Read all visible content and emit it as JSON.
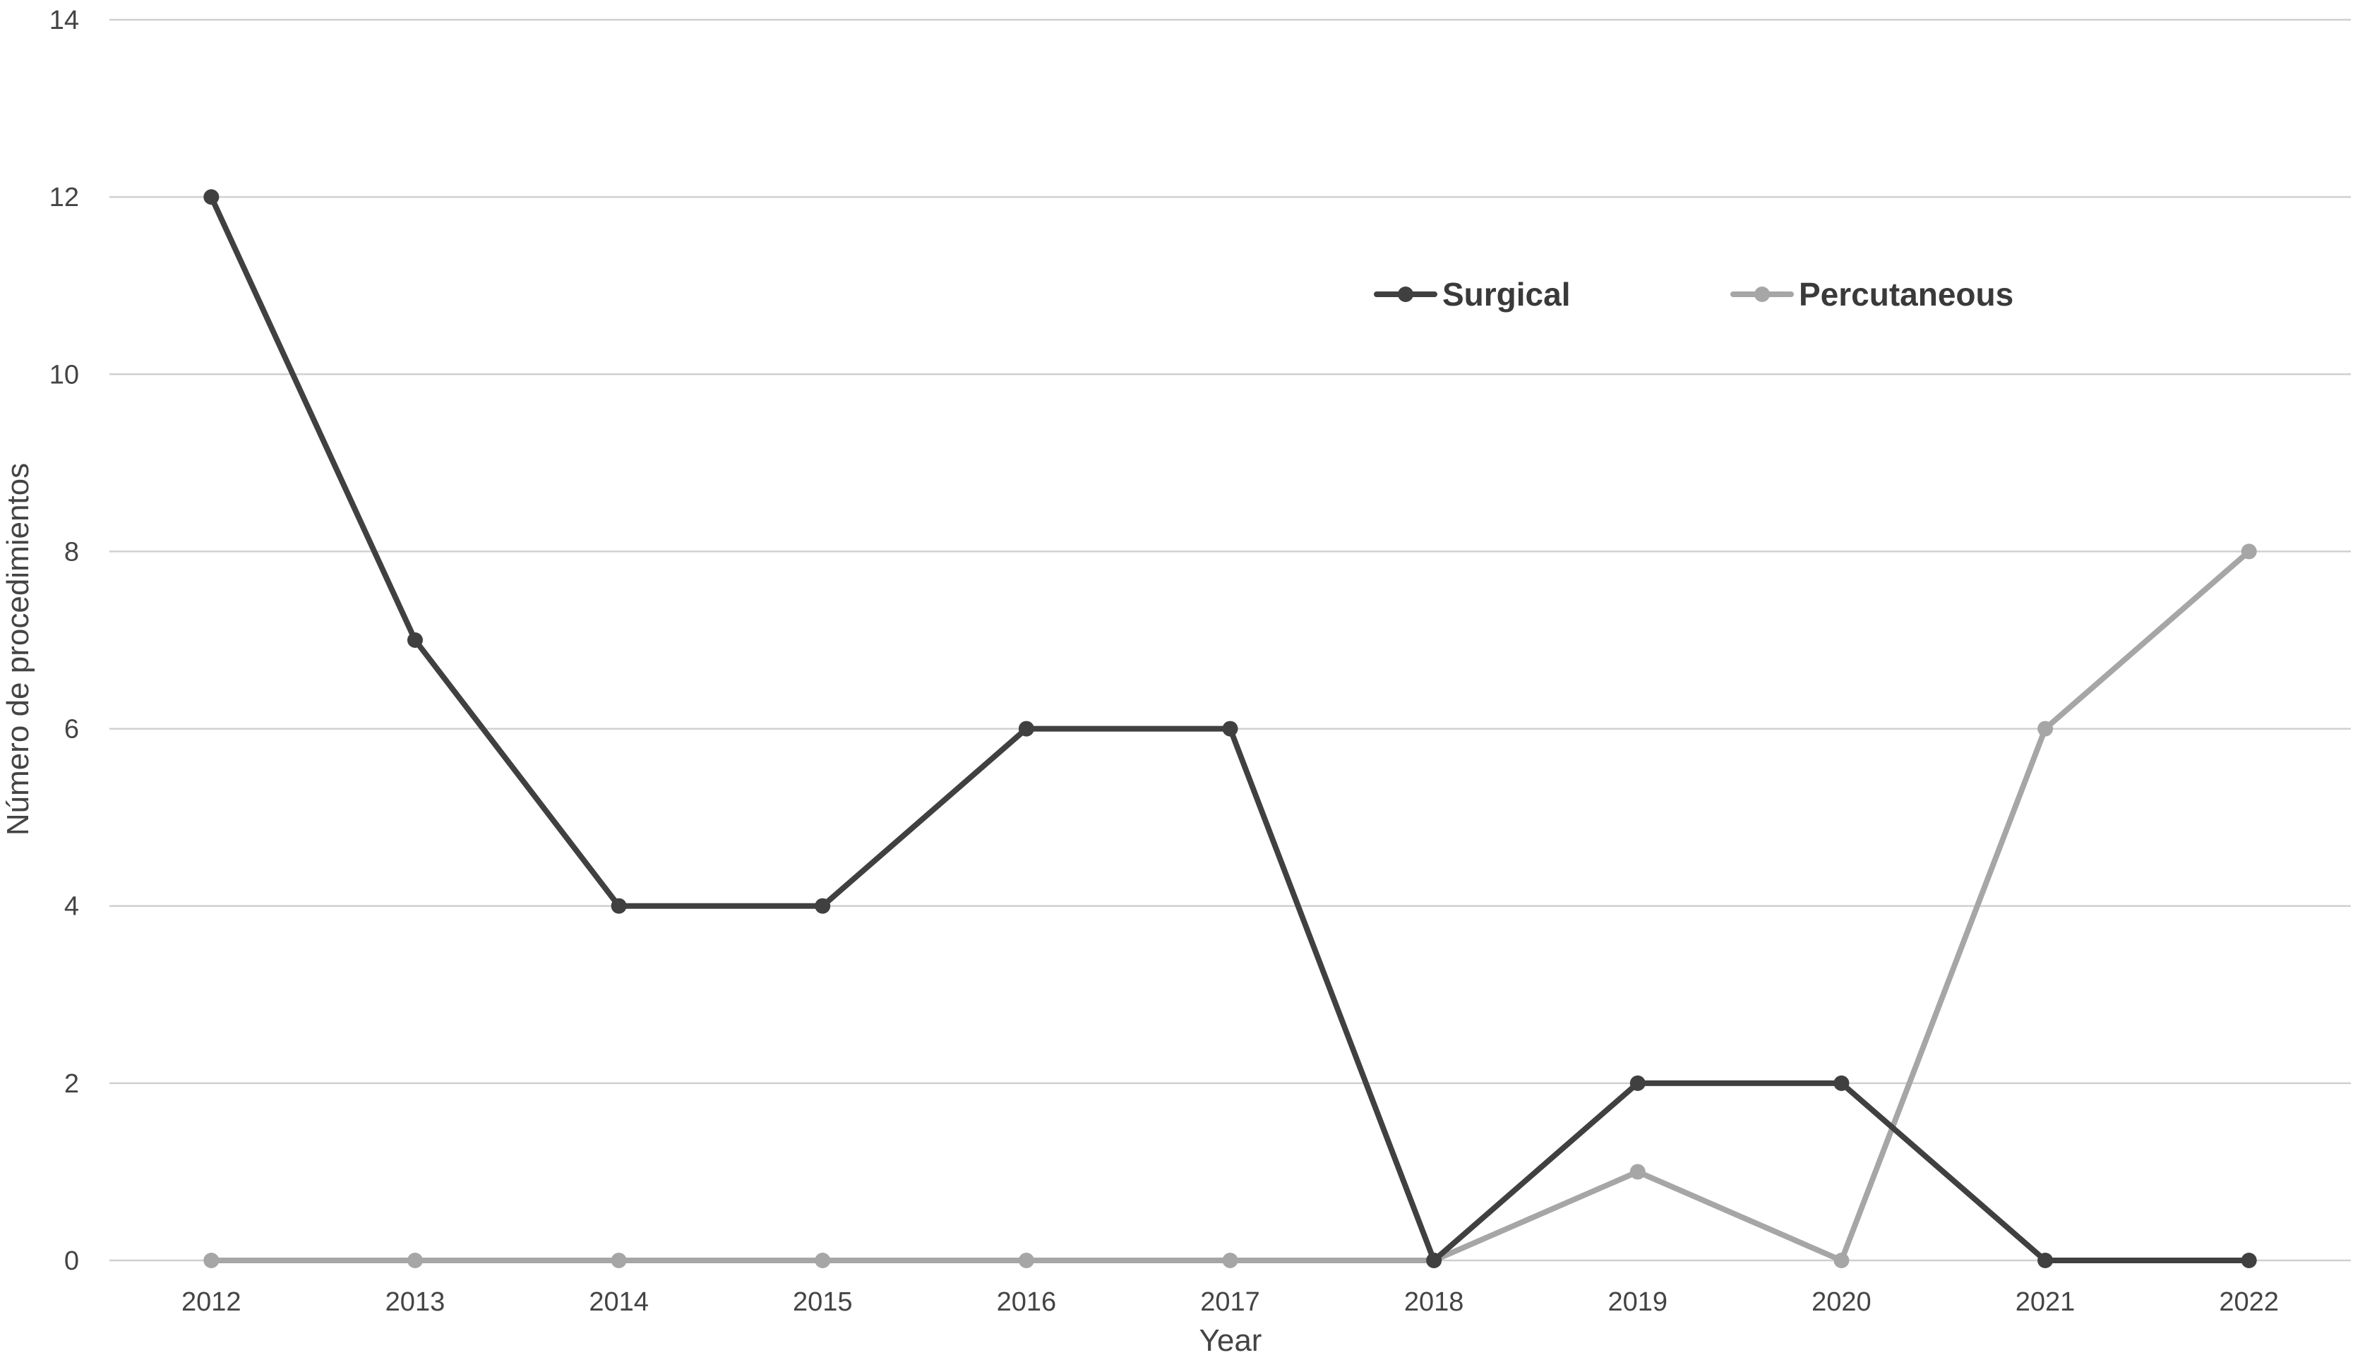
{
  "chart_data": {
    "type": "line",
    "title": "",
    "xlabel": "Year",
    "ylabel": "Número de procedimientos",
    "x": [
      "2012",
      "2013",
      "2014",
      "2015",
      "2016",
      "2017",
      "2018",
      "2019",
      "2020",
      "2021",
      "2022"
    ],
    "ylim": [
      0,
      14
    ],
    "yticks": [
      "0",
      "2",
      "4",
      "6",
      "8",
      "10",
      "12",
      "14"
    ],
    "grid": true,
    "legend_position": "top-right",
    "series": [
      {
        "name": "Surgical",
        "color": "#404040",
        "values": [
          12,
          7,
          4,
          4,
          6,
          6,
          0,
          2,
          2,
          0,
          0
        ]
      },
      {
        "name": "Percutaneous",
        "color": "#a6a6a6",
        "values": [
          0,
          0,
          0,
          0,
          0,
          0,
          0,
          1,
          0,
          6,
          8
        ]
      }
    ]
  }
}
